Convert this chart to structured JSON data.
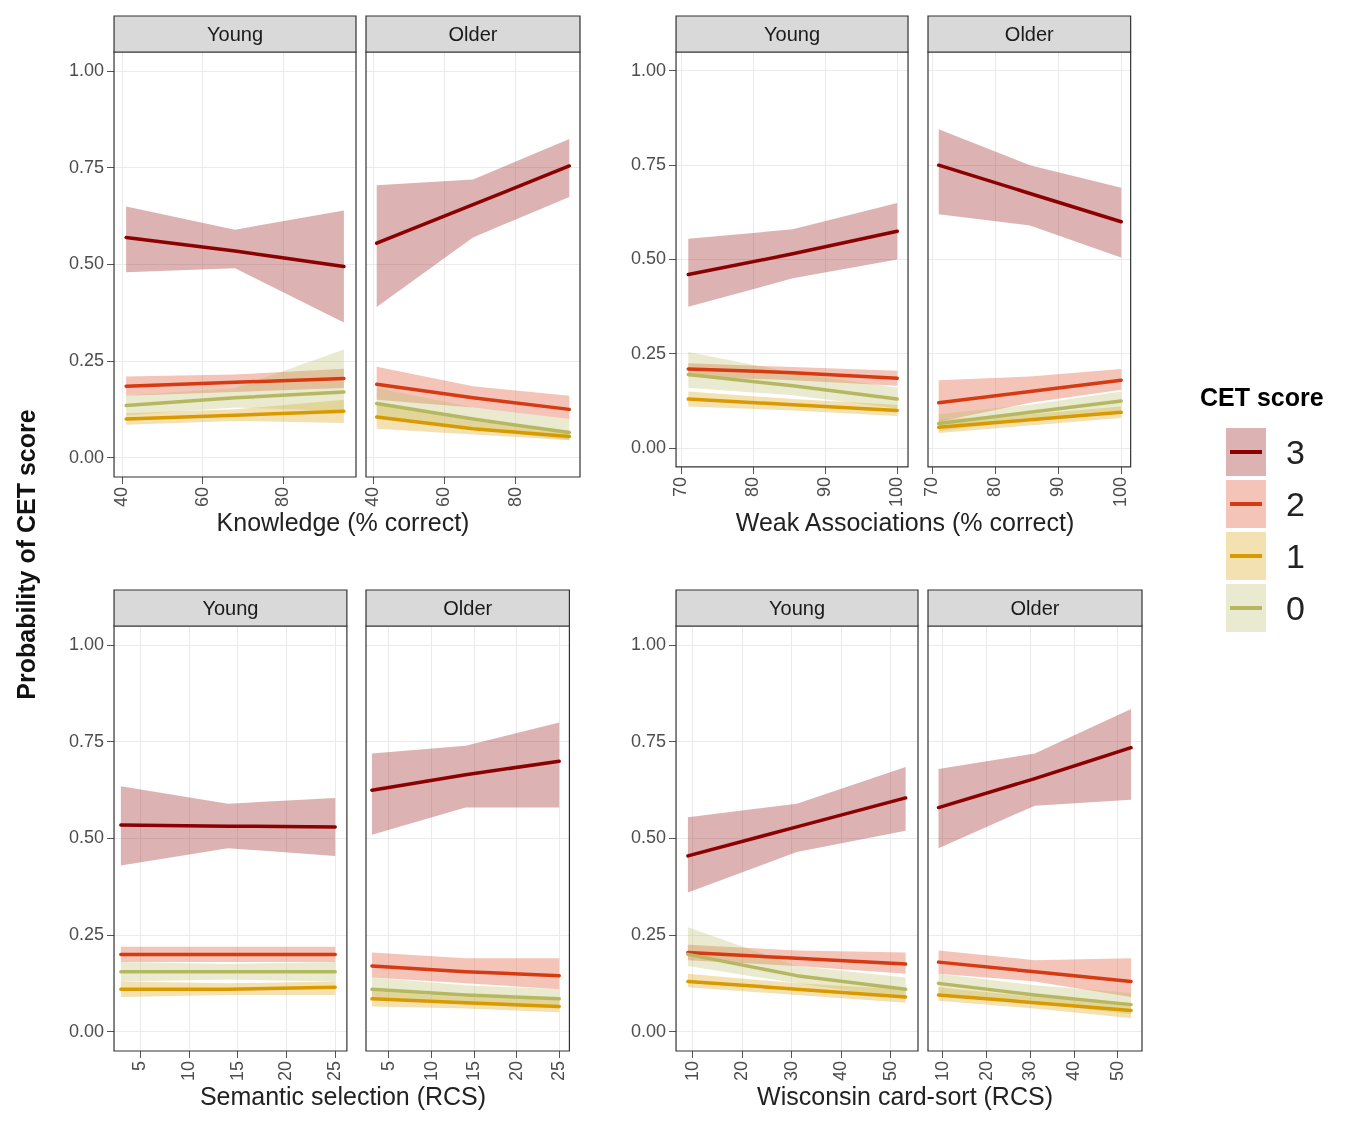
{
  "chart_data": [
    {
      "type": "line",
      "title": "Young",
      "xlabel": "Knowledge (% correct)",
      "ylabel": "Probability of CET score",
      "legend_title": "CET score",
      "legend": "right",
      "grid": true,
      "x": [
        41,
        68,
        95
      ],
      "xlim": [
        38,
        98
      ],
      "xticks": [
        40,
        60,
        80
      ],
      "ylim": [
        -0.05,
        1.05
      ],
      "yticks": [
        {
          "value": 0,
          "label": "0.00"
        },
        {
          "value": 0.25,
          "label": "0.25"
        },
        {
          "value": 0.5,
          "label": "0.50"
        },
        {
          "value": 0.75,
          "label": "0.75"
        },
        {
          "value": 1,
          "label": "1.00"
        }
      ],
      "series": [
        {
          "name": "3",
          "color": "#8b0000",
          "values": [
            0.57,
            0.535,
            0.495
          ],
          "lower": [
            0.48,
            0.49,
            0.35
          ],
          "upper": [
            0.65,
            0.59,
            0.64
          ]
        },
        {
          "name": "2",
          "color": "#d63a12",
          "values": [
            0.185,
            0.195,
            0.205
          ],
          "lower": [
            0.16,
            0.17,
            0.18
          ],
          "upper": [
            0.21,
            0.215,
            0.23
          ]
        },
        {
          "name": "1",
          "color": "#d99a00",
          "values": [
            0.1,
            0.11,
            0.12
          ],
          "lower": [
            0.085,
            0.095,
            0.09
          ],
          "upper": [
            0.115,
            0.125,
            0.15
          ]
        },
        {
          "name": "0",
          "color": "#b5b860",
          "values": [
            0.135,
            0.155,
            0.17
          ],
          "lower": [
            0.11,
            0.13,
            0.12
          ],
          "upper": [
            0.16,
            0.18,
            0.28
          ]
        }
      ]
    },
    {
      "type": "line",
      "title": "Older",
      "grid": true,
      "tick_labels": "x",
      "x": [
        41,
        68,
        95
      ],
      "xlim": [
        38,
        98
      ],
      "xticks": [
        40,
        60,
        80
      ],
      "ylim": [
        -0.05,
        1.05
      ],
      "yticks": [
        0,
        0.25,
        0.5,
        0.75,
        1
      ],
      "series": [
        {
          "name": "3",
          "color": "#8b0000",
          "values": [
            0.555,
            0.655,
            0.755
          ],
          "lower": [
            0.39,
            0.57,
            0.675
          ],
          "upper": [
            0.705,
            0.72,
            0.825
          ]
        },
        {
          "name": "2",
          "color": "#d63a12",
          "values": [
            0.19,
            0.155,
            0.125
          ],
          "lower": [
            0.15,
            0.13,
            0.1
          ],
          "upper": [
            0.235,
            0.185,
            0.16
          ]
        },
        {
          "name": "1",
          "color": "#d99a00",
          "values": [
            0.105,
            0.075,
            0.055
          ],
          "lower": [
            0.075,
            0.06,
            0.045
          ],
          "upper": [
            0.14,
            0.095,
            0.07
          ]
        },
        {
          "name": "0",
          "color": "#b5b860",
          "values": [
            0.14,
            0.1,
            0.065
          ],
          "lower": [
            0.1,
            0.075,
            0.045
          ],
          "upper": [
            0.18,
            0.13,
            0.1
          ]
        }
      ]
    },
    {
      "type": "line",
      "title": "Young",
      "xlabel": "Weak Associations (% correct)",
      "grid": true,
      "x": [
        71,
        85.5,
        100
      ],
      "xlim": [
        69.3,
        101.5
      ],
      "xticks": [
        70,
        80,
        90,
        100
      ],
      "ylim": [
        -0.05,
        1.05
      ],
      "yticks": [
        {
          "value": 0,
          "label": "0.00"
        },
        {
          "value": 0.25,
          "label": "0.25"
        },
        {
          "value": 0.5,
          "label": "0.50"
        },
        {
          "value": 0.75,
          "label": "0.75"
        },
        {
          "value": 1,
          "label": "1.00"
        }
      ],
      "series": [
        {
          "name": "3",
          "color": "#8b0000",
          "values": [
            0.46,
            0.515,
            0.575
          ],
          "lower": [
            0.375,
            0.45,
            0.5
          ],
          "upper": [
            0.555,
            0.58,
            0.65
          ]
        },
        {
          "name": "2",
          "color": "#d63a12",
          "values": [
            0.21,
            0.2,
            0.185
          ],
          "lower": [
            0.19,
            0.18,
            0.165
          ],
          "upper": [
            0.225,
            0.215,
            0.205
          ]
        },
        {
          "name": "1",
          "color": "#d99a00",
          "values": [
            0.13,
            0.115,
            0.1
          ],
          "lower": [
            0.11,
            0.1,
            0.085
          ],
          "upper": [
            0.15,
            0.13,
            0.115
          ]
        },
        {
          "name": "0",
          "color": "#b5b860",
          "values": [
            0.195,
            0.165,
            0.13
          ],
          "lower": [
            0.16,
            0.14,
            0.105
          ],
          "upper": [
            0.255,
            0.2,
            0.16
          ]
        }
      ]
    },
    {
      "type": "line",
      "title": "Older",
      "grid": true,
      "tick_labels": "x",
      "x": [
        71,
        85.5,
        100
      ],
      "xlim": [
        69.3,
        101.5
      ],
      "xticks": [
        70,
        80,
        90,
        100
      ],
      "ylim": [
        -0.05,
        1.05
      ],
      "yticks": [
        0,
        0.25,
        0.5,
        0.75,
        1
      ],
      "series": [
        {
          "name": "3",
          "color": "#8b0000",
          "values": [
            0.75,
            0.675,
            0.6
          ],
          "lower": [
            0.62,
            0.59,
            0.505
          ],
          "upper": [
            0.845,
            0.75,
            0.69
          ]
        },
        {
          "name": "2",
          "color": "#d63a12",
          "values": [
            0.12,
            0.15,
            0.18
          ],
          "lower": [
            0.07,
            0.12,
            0.155
          ],
          "upper": [
            0.18,
            0.19,
            0.21
          ]
        },
        {
          "name": "1",
          "color": "#d99a00",
          "values": [
            0.055,
            0.075,
            0.095
          ],
          "lower": [
            0.04,
            0.06,
            0.08
          ],
          "upper": [
            0.075,
            0.09,
            0.11
          ]
        },
        {
          "name": "0",
          "color": "#b5b860",
          "values": [
            0.065,
            0.095,
            0.125
          ],
          "lower": [
            0.045,
            0.075,
            0.1
          ],
          "upper": [
            0.09,
            0.115,
            0.15
          ]
        }
      ]
    },
    {
      "type": "line",
      "title": "Young",
      "xlabel": "Semantic selection (RCS)",
      "grid": true,
      "x": [
        3,
        14,
        25
      ],
      "xlim": [
        2.3,
        26.2
      ],
      "xticks": [
        5,
        10,
        15,
        20,
        25
      ],
      "ylim": [
        -0.05,
        1.05
      ],
      "yticks": [
        {
          "value": 0,
          "label": "0.00"
        },
        {
          "value": 0.25,
          "label": "0.25"
        },
        {
          "value": 0.5,
          "label": "0.50"
        },
        {
          "value": 0.75,
          "label": "0.75"
        },
        {
          "value": 1,
          "label": "1.00"
        }
      ],
      "series": [
        {
          "name": "3",
          "color": "#8b0000",
          "values": [
            0.535,
            0.532,
            0.53
          ],
          "lower": [
            0.43,
            0.475,
            0.455
          ],
          "upper": [
            0.635,
            0.59,
            0.605
          ]
        },
        {
          "name": "2",
          "color": "#d63a12",
          "values": [
            0.2,
            0.2,
            0.2
          ],
          "lower": [
            0.18,
            0.18,
            0.18
          ],
          "upper": [
            0.22,
            0.22,
            0.22
          ]
        },
        {
          "name": "1",
          "color": "#d99a00",
          "values": [
            0.11,
            0.11,
            0.115
          ],
          "lower": [
            0.09,
            0.095,
            0.095
          ],
          "upper": [
            0.13,
            0.125,
            0.13
          ]
        },
        {
          "name": "0",
          "color": "#b5b860",
          "values": [
            0.155,
            0.155,
            0.155
          ],
          "lower": [
            0.13,
            0.135,
            0.13
          ],
          "upper": [
            0.18,
            0.175,
            0.18
          ]
        }
      ]
    },
    {
      "type": "line",
      "title": "Older",
      "grid": true,
      "tick_labels": "x",
      "x": [
        3,
        14,
        25
      ],
      "xlim": [
        2.3,
        26.2
      ],
      "xticks": [
        5,
        10,
        15,
        20,
        25
      ],
      "ylim": [
        -0.05,
        1.05
      ],
      "yticks": [
        0,
        0.25,
        0.5,
        0.75,
        1
      ],
      "series": [
        {
          "name": "3",
          "color": "#8b0000",
          "values": [
            0.625,
            0.665,
            0.7
          ],
          "lower": [
            0.51,
            0.58,
            0.58
          ],
          "upper": [
            0.72,
            0.74,
            0.8
          ]
        },
        {
          "name": "2",
          "color": "#d63a12",
          "values": [
            0.17,
            0.155,
            0.145
          ],
          "lower": [
            0.14,
            0.125,
            0.11
          ],
          "upper": [
            0.205,
            0.19,
            0.19
          ]
        },
        {
          "name": "1",
          "color": "#d99a00",
          "values": [
            0.085,
            0.075,
            0.065
          ],
          "lower": [
            0.065,
            0.06,
            0.05
          ],
          "upper": [
            0.105,
            0.09,
            0.085
          ]
        },
        {
          "name": "0",
          "color": "#b5b860",
          "values": [
            0.11,
            0.095,
            0.085
          ],
          "lower": [
            0.085,
            0.07,
            0.06
          ],
          "upper": [
            0.14,
            0.12,
            0.11
          ]
        }
      ]
    },
    {
      "type": "line",
      "title": "Young",
      "xlabel": "Wisconsin card-sort (RCS)",
      "grid": true,
      "x": [
        9,
        31,
        53
      ],
      "xlim": [
        6.6,
        55.5
      ],
      "xticks": [
        10,
        20,
        30,
        40,
        50
      ],
      "ylim": [
        -0.05,
        1.05
      ],
      "yticks": [
        {
          "value": 0,
          "label": "0.00"
        },
        {
          "value": 0.25,
          "label": "0.25"
        },
        {
          "value": 0.5,
          "label": "0.50"
        },
        {
          "value": 0.75,
          "label": "0.75"
        },
        {
          "value": 1,
          "label": "1.00"
        }
      ],
      "series": [
        {
          "name": "3",
          "color": "#8b0000",
          "values": [
            0.455,
            0.53,
            0.605
          ],
          "lower": [
            0.36,
            0.465,
            0.52
          ],
          "upper": [
            0.555,
            0.59,
            0.685
          ]
        },
        {
          "name": "2",
          "color": "#d63a12",
          "values": [
            0.205,
            0.19,
            0.175
          ],
          "lower": [
            0.185,
            0.17,
            0.15
          ],
          "upper": [
            0.225,
            0.21,
            0.205
          ]
        },
        {
          "name": "1",
          "color": "#d99a00",
          "values": [
            0.13,
            0.11,
            0.09
          ],
          "lower": [
            0.115,
            0.095,
            0.075
          ],
          "upper": [
            0.15,
            0.125,
            0.11
          ]
        },
        {
          "name": "0",
          "color": "#b5b860",
          "values": [
            0.2,
            0.145,
            0.11
          ],
          "lower": [
            0.17,
            0.125,
            0.085
          ],
          "upper": [
            0.27,
            0.17,
            0.14
          ]
        }
      ]
    },
    {
      "type": "line",
      "title": "Older",
      "grid": true,
      "tick_labels": "x",
      "x": [
        9,
        31,
        53
      ],
      "xlim": [
        6.6,
        55.5
      ],
      "xticks": [
        10,
        20,
        30,
        40,
        50
      ],
      "ylim": [
        -0.05,
        1.05
      ],
      "yticks": [
        0,
        0.25,
        0.5,
        0.75,
        1
      ],
      "series": [
        {
          "name": "3",
          "color": "#8b0000",
          "values": [
            0.58,
            0.655,
            0.735
          ],
          "lower": [
            0.475,
            0.585,
            0.6
          ],
          "upper": [
            0.68,
            0.72,
            0.835
          ]
        },
        {
          "name": "2",
          "color": "#d63a12",
          "values": [
            0.18,
            0.155,
            0.13
          ],
          "lower": [
            0.15,
            0.13,
            0.09
          ],
          "upper": [
            0.21,
            0.185,
            0.19
          ]
        },
        {
          "name": "1",
          "color": "#d99a00",
          "values": [
            0.095,
            0.075,
            0.055
          ],
          "lower": [
            0.08,
            0.06,
            0.035
          ],
          "upper": [
            0.115,
            0.09,
            0.075
          ]
        },
        {
          "name": "0",
          "color": "#b5b860",
          "values": [
            0.125,
            0.095,
            0.07
          ],
          "lower": [
            0.1,
            0.075,
            0.045
          ],
          "upper": [
            0.15,
            0.12,
            0.1
          ]
        }
      ]
    }
  ]
}
